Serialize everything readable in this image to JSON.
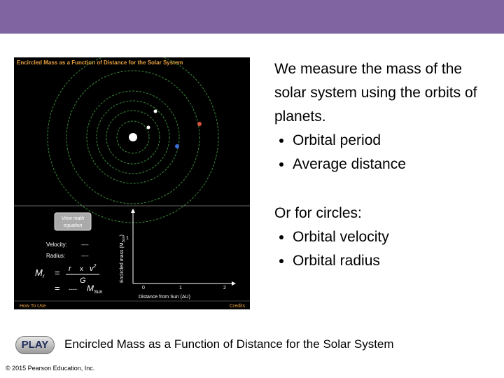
{
  "animation": {
    "title": "Encircled Mass as a Function of Distance for the Solar System",
    "button": [
      "View math",
      "equation"
    ],
    "velocity_label": "Velocity:",
    "velocity_value": "----",
    "radius_label": "Radius:",
    "radius_value": "----",
    "equation": {
      "m": "M",
      "m_sub": "r",
      "eq": "=",
      "r": "r",
      "times": "x",
      "v": "v",
      "v_exp": "2",
      "g": "G",
      "eq2": "=",
      "blank": "----",
      "msun": "M",
      "msun_sub": "Sun"
    },
    "graph": {
      "y_label": "Encircled mass (M",
      "y_label_sub": "Sun",
      "y_label_end": ")",
      "y_tick": "1",
      "x_ticks": [
        "0",
        "1",
        "2"
      ],
      "x_label": "Distance from Sun (AU)"
    },
    "how_to_use": "How To Use",
    "credits": "Credits"
  },
  "text": {
    "paragraph1": "We measure the mass of the solar system using the orbits of planets.",
    "bullets1": [
      "Orbital period",
      "Average distance"
    ],
    "paragraph2": "Or for circles:",
    "bullets2": [
      "Orbital velocity",
      "Orbital radius"
    ]
  },
  "play_button": "PLAY",
  "caption": "Encircled Mass as a Function of Distance for the Solar System",
  "copyright": "© 2015 Pearson Education, Inc."
}
